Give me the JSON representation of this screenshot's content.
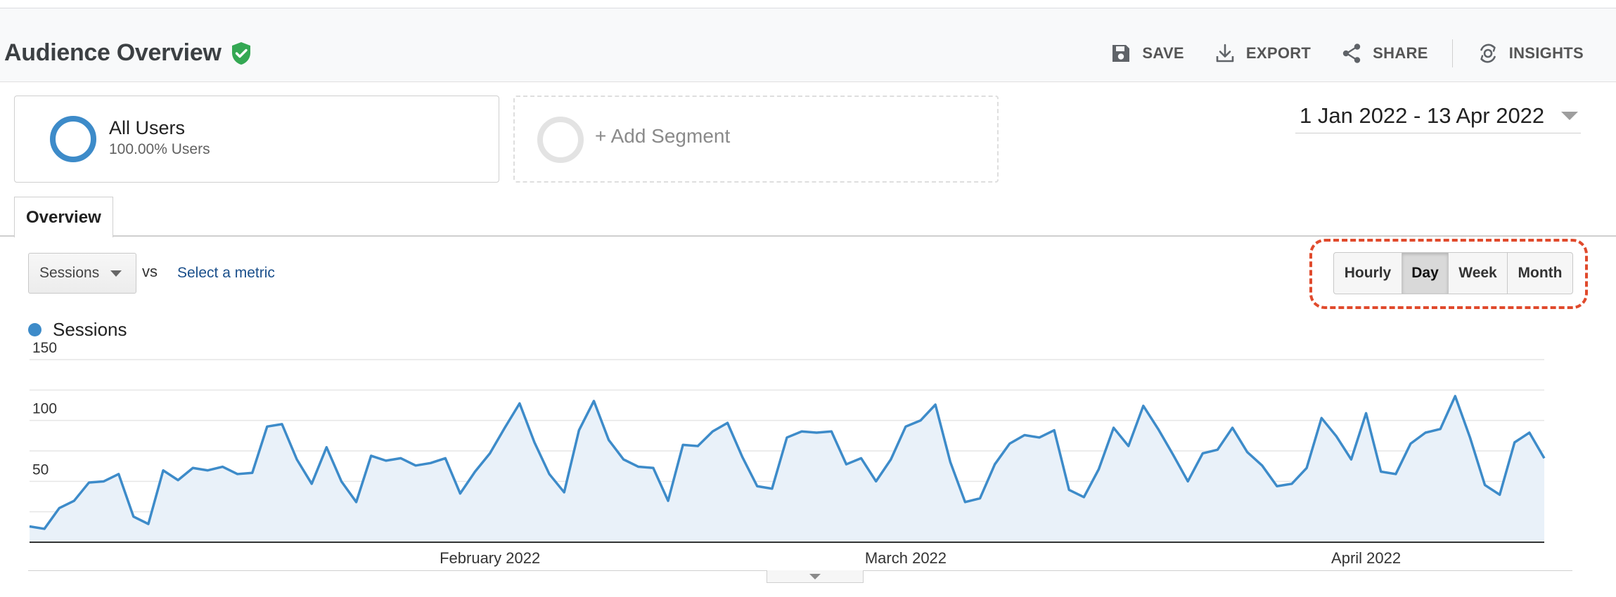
{
  "header": {
    "title": "Audience Overview",
    "verified_icon": "shield-check-icon",
    "actions": [
      {
        "key": "save",
        "label": "SAVE",
        "icon": "save-icon"
      },
      {
        "key": "export",
        "label": "EXPORT",
        "icon": "download-icon"
      },
      {
        "key": "share",
        "label": "SHARE",
        "icon": "share-icon"
      },
      {
        "key": "insights",
        "label": "INSIGHTS",
        "icon": "insights-icon"
      }
    ]
  },
  "segments": {
    "primary": {
      "name": "All Users",
      "subtitle": "100.00% Users"
    },
    "add_label": "+ Add Segment"
  },
  "date_range": {
    "label": "1 Jan 2022 - 13 Apr 2022"
  },
  "tabs": [
    {
      "label": "Overview",
      "active": true
    }
  ],
  "metric_bar": {
    "selected_metric": "Sessions",
    "vs_label": "vs",
    "select_metric_label": "Select a metric"
  },
  "granularity": {
    "options": [
      "Hourly",
      "Day",
      "Week",
      "Month"
    ],
    "selected": "Day"
  },
  "colors": {
    "series": "#3d8bc9",
    "series_fill": "#e9f1f9",
    "verified": "#34a853",
    "highlight": "#e04a2c",
    "link": "#1a4f8b"
  },
  "chart_data": {
    "type": "area",
    "series": [
      {
        "name": "Sessions",
        "values": [
          13,
          11,
          28,
          34,
          49,
          50,
          56,
          21,
          15,
          59,
          51,
          61,
          59,
          62,
          56,
          57,
          95,
          97,
          68,
          48,
          78,
          50,
          33,
          71,
          67,
          69,
          63,
          65,
          69,
          40,
          58,
          73,
          94,
          114,
          82,
          56,
          41,
          92,
          116,
          84,
          68,
          62,
          61,
          34,
          80,
          79,
          91,
          98,
          70,
          46,
          44,
          86,
          91,
          90,
          91,
          64,
          69,
          50,
          68,
          95,
          100,
          113,
          66,
          33,
          36,
          64,
          81,
          88,
          86,
          92,
          43,
          37,
          60,
          94,
          79,
          112,
          93,
          72,
          50,
          73,
          76,
          94,
          74,
          63,
          46,
          48,
          61,
          102,
          87,
          68,
          106,
          58,
          56,
          81,
          90,
          93,
          120,
          86,
          47,
          39,
          82,
          90,
          69
        ]
      }
    ],
    "start_date": "2022-01-01",
    "end_date": "2022-04-13",
    "x_tick_labels": [
      {
        "label": "February 2022",
        "index": 31
      },
      {
        "label": "March 2022",
        "index": 59
      },
      {
        "label": "April 2022",
        "index": 90
      }
    ],
    "y_ticks": [
      50,
      100,
      150
    ],
    "ylim": [
      0,
      150
    ],
    "grid": true,
    "legend": "top-left"
  }
}
